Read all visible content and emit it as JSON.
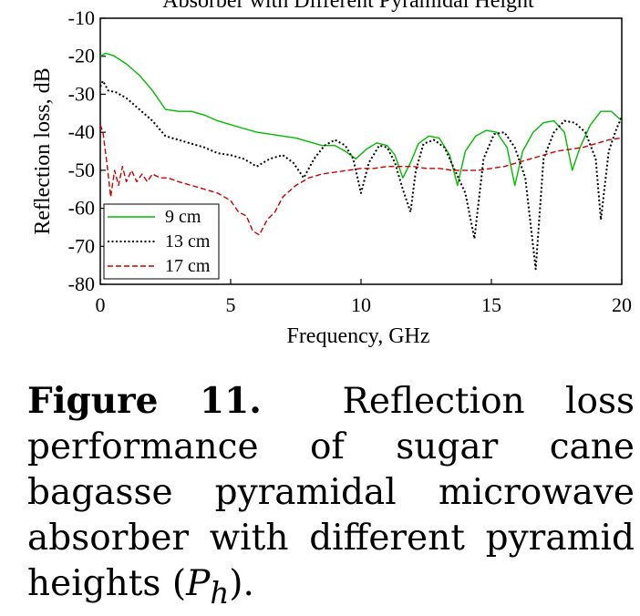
{
  "chart_data": {
    "type": "line",
    "title": "Absorber with Different Pyramidal Height",
    "xlabel": "Frequency, GHz",
    "ylabel": "Reflection loss, dB",
    "xlim": [
      0,
      20
    ],
    "ylim": [
      -80,
      -10
    ],
    "xticks": [
      "0",
      "5",
      "10",
      "15",
      "20"
    ],
    "yticks": [
      "-10",
      "-20",
      "-30",
      "-40",
      "-50",
      "-60",
      "-70",
      "-80"
    ],
    "grid": false,
    "legend_position": "bottom-left",
    "series": [
      {
        "name": "9 cm",
        "color": "#00bb00",
        "style": "solid",
        "x": [
          0,
          0.2,
          0.5,
          1.0,
          1.5,
          2.0,
          2.5,
          3.0,
          3.5,
          4.0,
          4.5,
          5.0,
          5.5,
          6.0,
          6.5,
          7.0,
          7.5,
          8.0,
          8.5,
          9.0,
          9.4,
          9.8,
          10.2,
          10.6,
          11.0,
          11.3,
          11.6,
          11.9,
          12.2,
          12.6,
          13.0,
          13.4,
          13.7,
          14.0,
          14.4,
          14.8,
          15.2,
          15.6,
          15.9,
          16.2,
          16.6,
          17.0,
          17.4,
          17.8,
          18.1,
          18.4,
          18.8,
          19.2,
          19.6,
          20.0
        ],
        "values": [
          -20,
          -19.2,
          -19.8,
          -22,
          -25,
          -29,
          -34,
          -34.5,
          -34.5,
          -35.5,
          -37,
          -38,
          -39,
          -40,
          -40.5,
          -41,
          -41.5,
          -42.5,
          -43.5,
          -43.5,
          -45,
          -47,
          -44.5,
          -42.8,
          -43.5,
          -46,
          -52,
          -48,
          -43,
          -41,
          -41.5,
          -46,
          -54,
          -45,
          -41,
          -39.5,
          -40,
          -44,
          -54,
          -45,
          -40,
          -37.5,
          -37,
          -40,
          -50,
          -44,
          -38,
          -34.5,
          -34.5,
          -37
        ]
      },
      {
        "name": "13 cm",
        "color": "#000000",
        "style": "dotted",
        "x": [
          0,
          0.1,
          0.3,
          0.6,
          1.0,
          1.5,
          2.0,
          2.5,
          3.0,
          3.5,
          4.0,
          4.5,
          5.0,
          5.5,
          6.0,
          6.5,
          7.0,
          7.4,
          7.8,
          8.2,
          8.6,
          9.0,
          9.4,
          9.7,
          10.0,
          10.3,
          10.7,
          11.0,
          11.3,
          11.6,
          11.9,
          12.1,
          12.4,
          12.8,
          13.2,
          13.6,
          14.0,
          14.35,
          14.7,
          15.1,
          15.5,
          15.9,
          16.3,
          16.7,
          17.0,
          17.4,
          17.8,
          18.2,
          18.6,
          19.0,
          19.2,
          19.5,
          19.8,
          20.0
        ],
        "values": [
          -28,
          -26.5,
          -29,
          -29.5,
          -31,
          -34,
          -37,
          -41,
          -42,
          -43,
          -44,
          -45.5,
          -46,
          -47,
          -49,
          -47,
          -46,
          -48,
          -52,
          -47,
          -43.5,
          -42,
          -43.5,
          -47,
          -56,
          -48,
          -43.5,
          -44,
          -48,
          -55,
          -61,
          -50,
          -43,
          -42,
          -44,
          -50,
          -56,
          -68,
          -47,
          -40.5,
          -40,
          -44,
          -52,
          -76,
          -47,
          -40,
          -37,
          -37.5,
          -40,
          -47,
          -63,
          -45,
          -39,
          -36
        ]
      },
      {
        "name": "17 cm",
        "color": "#cc0000",
        "style": "dashed",
        "x": [
          0,
          0.1,
          0.25,
          0.4,
          0.55,
          0.7,
          0.85,
          1.0,
          1.2,
          1.4,
          1.6,
          1.8,
          2.0,
          2.3,
          2.6,
          3.0,
          3.5,
          4.0,
          4.5,
          5.0,
          5.3,
          5.6,
          5.85,
          6.1,
          6.4,
          6.7,
          7.0,
          7.5,
          8.0,
          8.5,
          9.0,
          9.5,
          10.0,
          10.5,
          11.0,
          11.5,
          12.0,
          12.5,
          13.0,
          13.5,
          14.0,
          14.5,
          15.0,
          15.5,
          16.0,
          16.5,
          17.0,
          17.5,
          18.0,
          18.5,
          19.0,
          19.5,
          20.0
        ],
        "values": [
          -38,
          -40,
          -48,
          -57,
          -50,
          -54,
          -49,
          -53,
          -50,
          -53,
          -51,
          -53,
          -51,
          -52,
          -52,
          -53,
          -54,
          -55,
          -56,
          -58,
          -61,
          -62,
          -66,
          -67,
          -63,
          -61,
          -57,
          -54,
          -52,
          -51,
          -50.5,
          -50,
          -49.5,
          -49.5,
          -49,
          -49,
          -49,
          -49.5,
          -49.5,
          -50,
          -50,
          -50,
          -49.5,
          -49,
          -48,
          -47,
          -46,
          -45,
          -44.5,
          -44,
          -43,
          -42,
          -41.5
        ]
      }
    ]
  },
  "caption": {
    "label": "Figure 11.",
    "text_before": "Reflection loss performance of sugar cane bagasse pyramidal microwave absorber with different pyramid heights (",
    "math_base": "P",
    "math_sub": "h",
    "text_after": ")."
  }
}
